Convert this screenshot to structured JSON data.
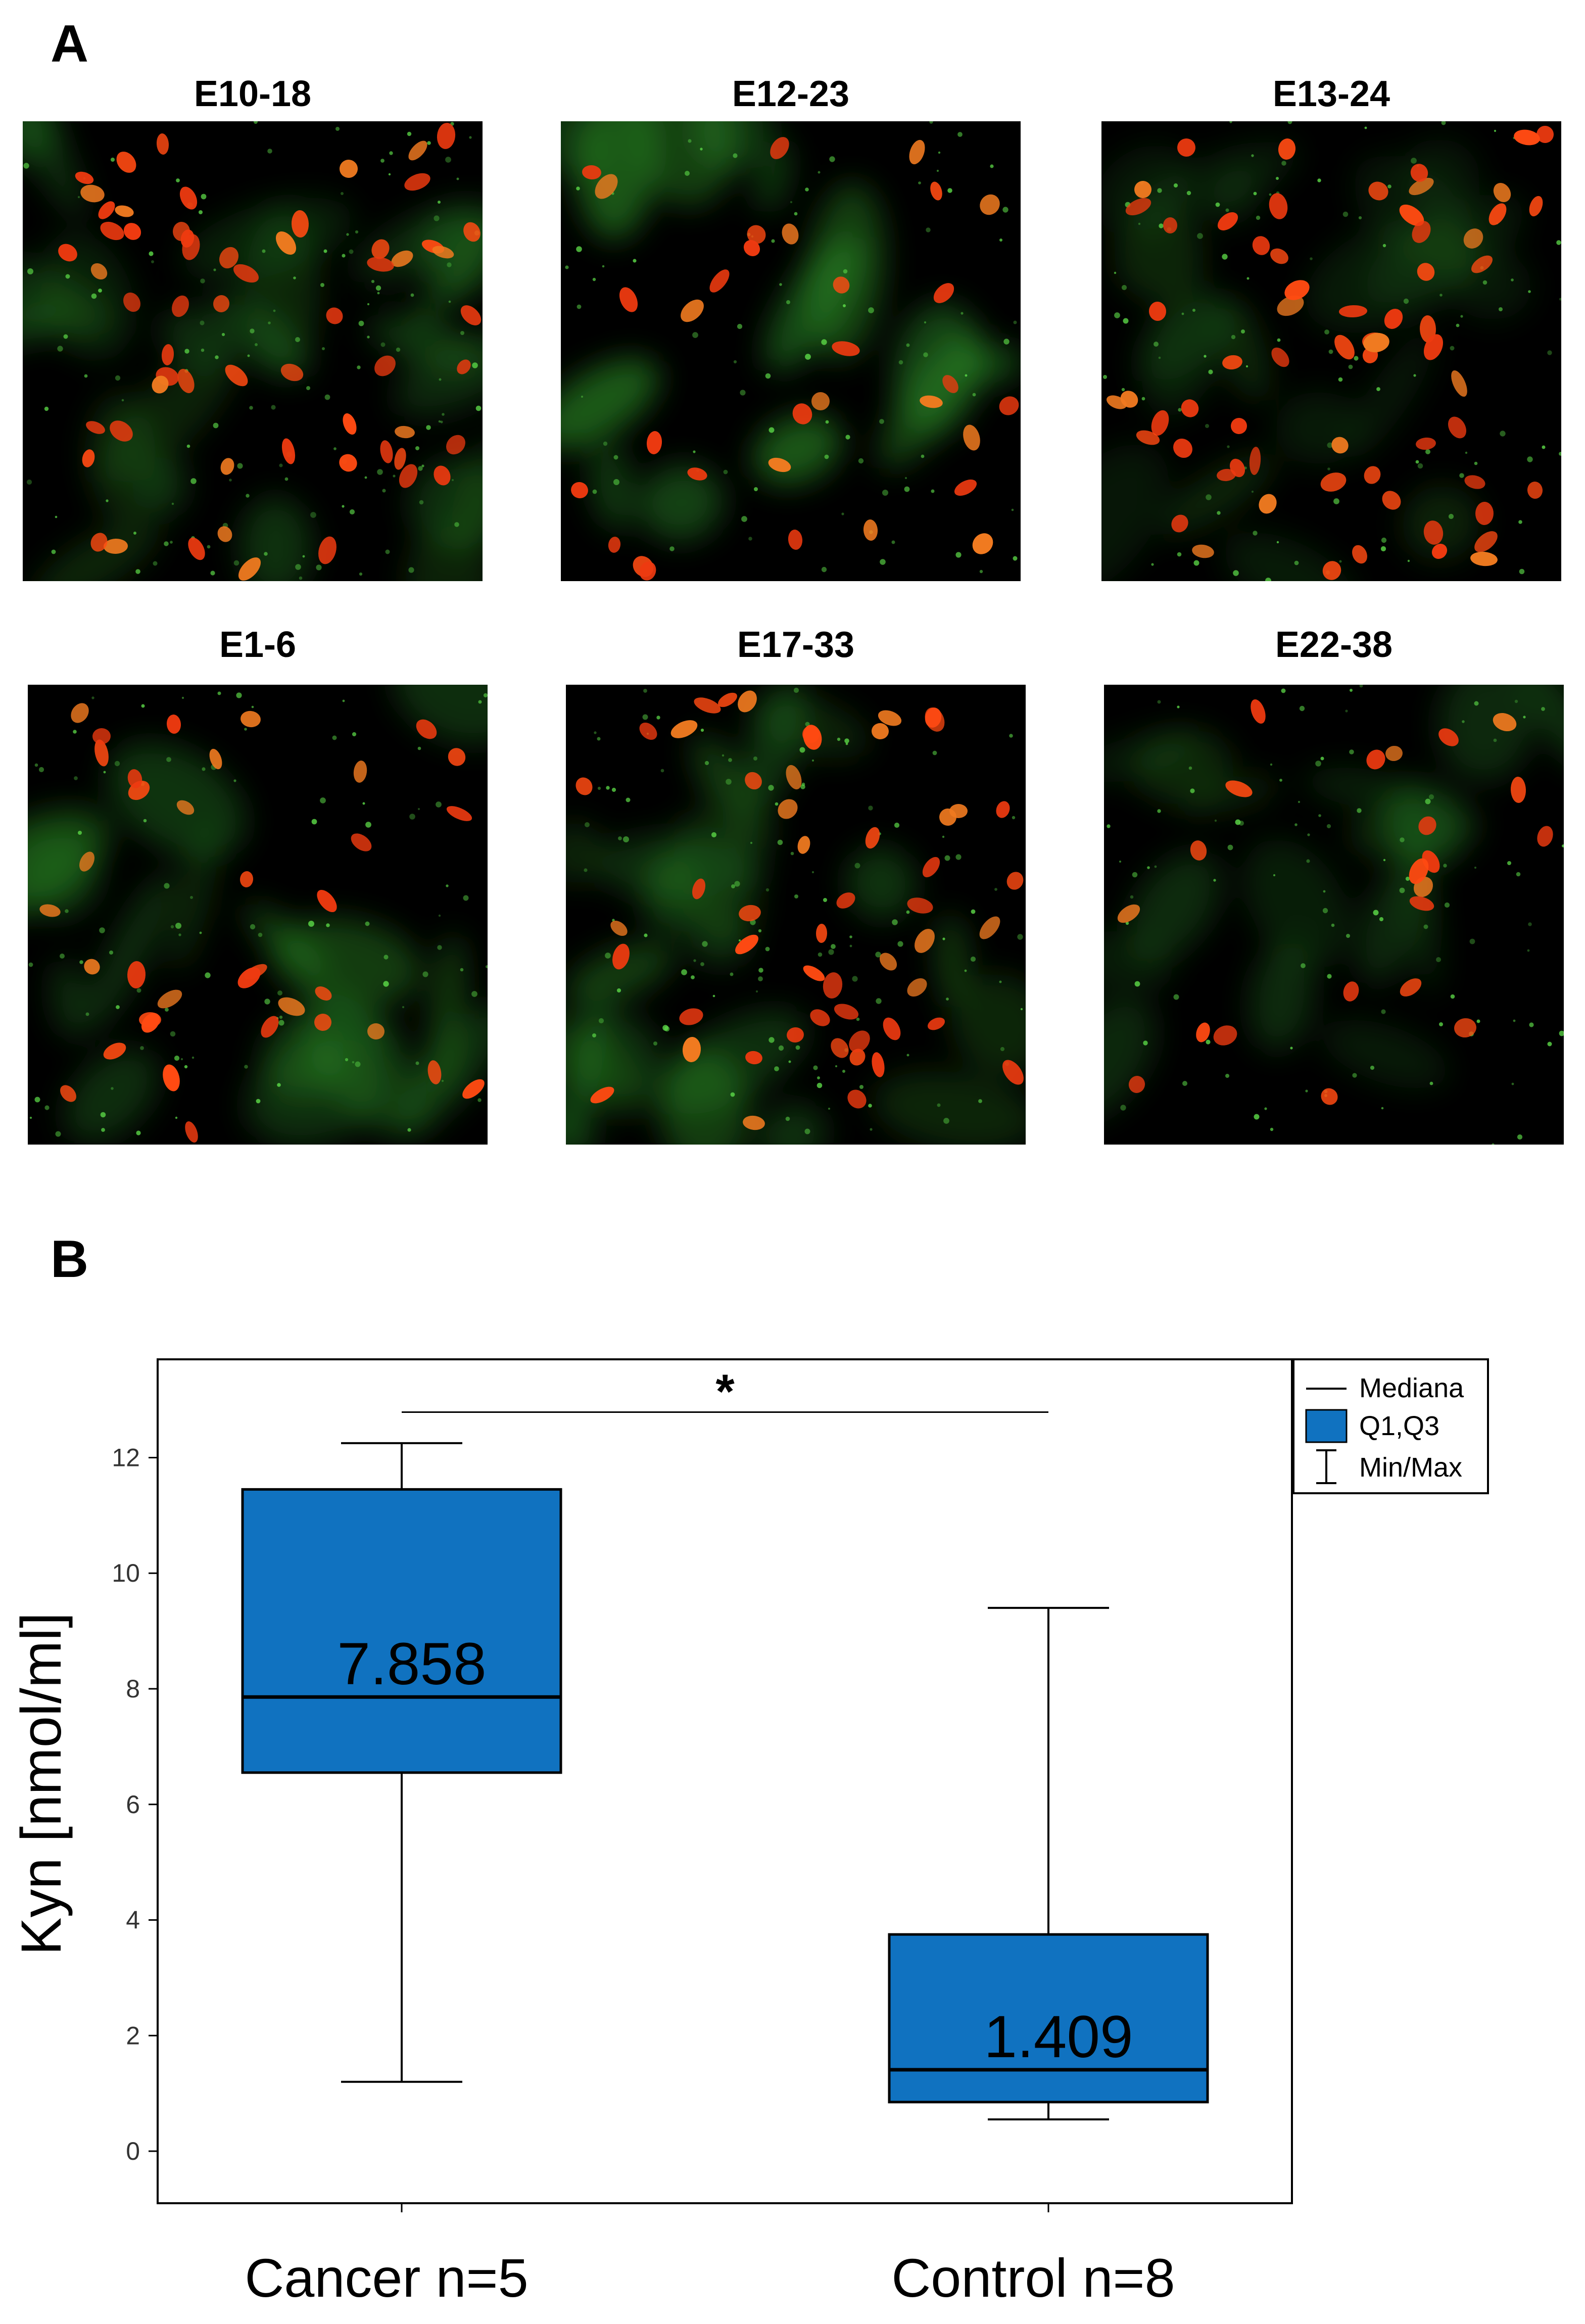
{
  "panel_a": {
    "letter": "A",
    "images": [
      {
        "title": "E10-18"
      },
      {
        "title": "E12-23"
      },
      {
        "title": "E13-24"
      },
      {
        "title": "E1-6"
      },
      {
        "title": "E17-33"
      },
      {
        "title": "E22-38"
      }
    ]
  },
  "panel_b": {
    "letter": "B"
  },
  "chart_data": {
    "type": "box",
    "ylabel": "Kyn [nmol/ml]",
    "ylim": [
      -0.9,
      13.7
    ],
    "yticks": [
      0,
      2,
      4,
      6,
      8,
      10,
      12
    ],
    "categories": [
      "Cancer n=5",
      "Control n=8"
    ],
    "boxes": [
      {
        "min": 1.2,
        "q1": 6.55,
        "median": 7.858,
        "q3": 11.45,
        "max": 12.25,
        "median_label": "7.858",
        "color": "#1072c0"
      },
      {
        "min": 0.55,
        "q1": 0.85,
        "median": 1.409,
        "q3": 3.75,
        "max": 9.4,
        "median_label": "1.409",
        "color": "#1072c0"
      }
    ],
    "significance": "*",
    "legend": {
      "position": "top-right",
      "items": [
        "Mediana",
        "Q1,Q3",
        "Min/Max"
      ]
    }
  }
}
